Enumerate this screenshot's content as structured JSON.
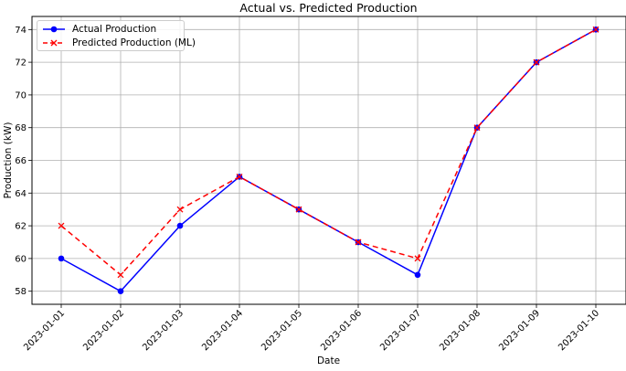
{
  "chart_data": {
    "type": "line",
    "title": "Actual vs. Predicted Production",
    "xlabel": "Date",
    "ylabel": "Production (kW)",
    "categories": [
      "2023-01-01",
      "2023-01-02",
      "2023-01-03",
      "2023-01-04",
      "2023-01-05",
      "2023-01-06",
      "2023-01-07",
      "2023-01-08",
      "2023-01-09",
      "2023-01-10"
    ],
    "ylim": [
      57.2,
      74.8
    ],
    "yticks": [
      58,
      60,
      62,
      64,
      66,
      68,
      70,
      72,
      74
    ],
    "grid": true,
    "legend_position": "top-left",
    "series": [
      {
        "name": "Actual Production",
        "values": [
          60,
          58,
          62,
          65,
          63,
          61,
          59,
          68,
          72,
          74
        ],
        "color": "#0000ff",
        "line_style": "solid",
        "marker": "circle"
      },
      {
        "name": "Predicted Production (ML)",
        "values": [
          62,
          59,
          63,
          65,
          63,
          61,
          60,
          68,
          72,
          74
        ],
        "color": "#ff0000",
        "line_style": "dashed",
        "marker": "x"
      }
    ]
  }
}
